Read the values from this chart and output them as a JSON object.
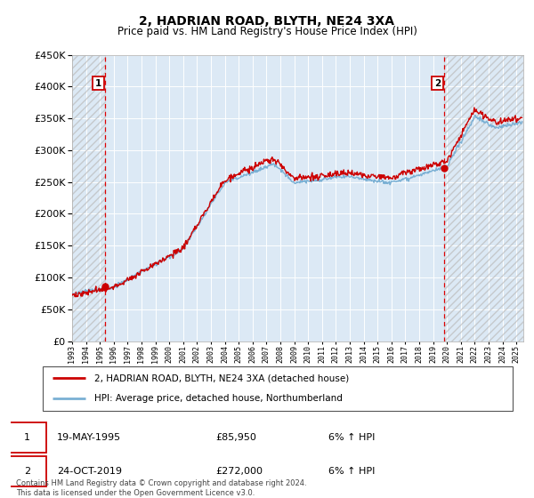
{
  "title": "2, HADRIAN ROAD, BLYTH, NE24 3XA",
  "subtitle": "Price paid vs. HM Land Registry's House Price Index (HPI)",
  "legend_line1": "2, HADRIAN ROAD, BLYTH, NE24 3XA (detached house)",
  "legend_line2": "HPI: Average price, detached house, Northumberland",
  "annotation1_label": "1",
  "annotation1_date": "19-MAY-1995",
  "annotation1_price": "£85,950",
  "annotation1_hpi": "6% ↑ HPI",
  "annotation1_year": 1995.38,
  "annotation1_value": 85950,
  "annotation2_label": "2",
  "annotation2_date": "24-OCT-2019",
  "annotation2_price": "£272,000",
  "annotation2_hpi": "6% ↑ HPI",
  "annotation2_year": 2019.81,
  "annotation2_value": 272000,
  "footer": "Contains HM Land Registry data © Crown copyright and database right 2024.\nThis data is licensed under the Open Government Licence v3.0.",
  "red_color": "#cc0000",
  "blue_color": "#7ab0d4",
  "bg_color": "#dce9f5",
  "ylim": [
    0,
    450000
  ],
  "xlim_start": 1993.0,
  "xlim_end": 2025.5,
  "hatch_left_end": 1995.38,
  "hatch_right_start": 2019.81
}
